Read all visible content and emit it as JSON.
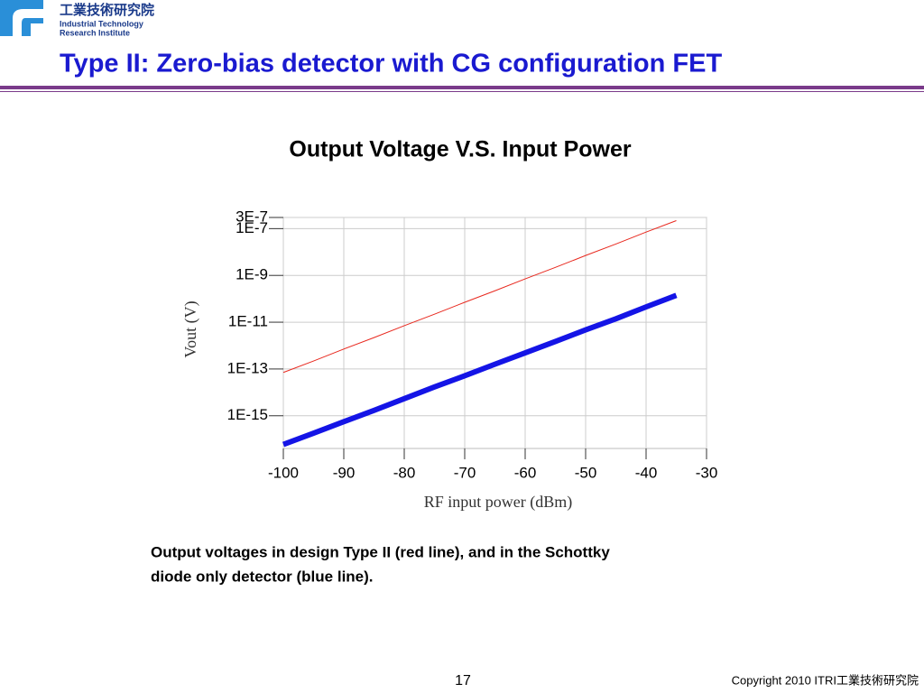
{
  "header": {
    "org_name": "工業技術研究院",
    "org_en_1": "Industrial Technology",
    "org_en_2": "Research Institute",
    "title": "Type II: Zero-bias detector with CG configuration FET"
  },
  "chart_data": {
    "type": "line",
    "title": "Output Voltage V.S. Input Power",
    "x_label": "RF input power (dBm)",
    "y_label": "Vout (V)",
    "x": [
      -100,
      -95,
      -90,
      -85,
      -80,
      -75,
      -70,
      -65,
      -60,
      -55,
      -50,
      -45,
      -40,
      -35
    ],
    "series": [
      {
        "name": "Type II",
        "color": "#e8281e",
        "values": [
          7.1e-14,
          2.2e-13,
          7.1e-13,
          2.2e-12,
          7.1e-12,
          2.2e-11,
          7.1e-11,
          2.2e-10,
          7.1e-10,
          2.2e-09,
          7.1e-09,
          2.2e-08,
          7.1e-08,
          2.2e-07
        ]
      },
      {
        "name": "Schottky diode only",
        "color": "#1414e6",
        "values": [
          5.9e-17,
          1.8e-16,
          5.6e-16,
          1.7e-15,
          5.4e-15,
          1.7e-14,
          5.1e-14,
          1.6e-13,
          4.9e-13,
          1.5e-12,
          4.7e-12,
          1.4e-11,
          4.5e-11,
          1.4e-10
        ]
      }
    ],
    "xlim": [
      -100,
      -30
    ],
    "xticks": [
      -100,
      -90,
      -80,
      -70,
      -60,
      -50,
      -40,
      -30
    ],
    "ylim": [
      4e-17,
      3e-07
    ],
    "log_y": true,
    "grid": true,
    "yticks": [
      {
        "value": 3e-07,
        "label": "3E-7"
      },
      {
        "value": 1e-07,
        "label": "1E-7"
      },
      {
        "value": 1e-09,
        "label": "1E-9"
      },
      {
        "value": 1e-11,
        "label": "1E-11"
      },
      {
        "value": 1e-13,
        "label": "1E-13"
      },
      {
        "value": 1e-15,
        "label": "1E-15"
      }
    ]
  },
  "caption": [
    "Output voltages in design Type II (red line), and in the Schottky",
    "diode only detector (blue line)."
  ],
  "footer": {
    "page": "17",
    "copyright": "Copyright 2010 ITRI工業技術研究院"
  }
}
